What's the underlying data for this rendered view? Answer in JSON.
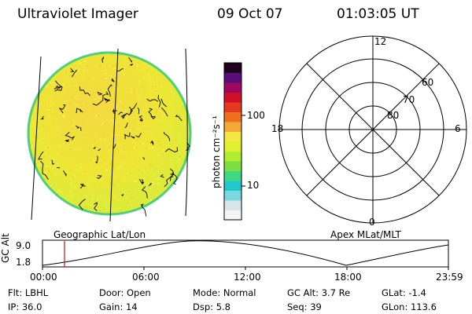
{
  "header": {
    "instrument": "Ultraviolet Imager",
    "date": "09 Oct 07",
    "time": "01:03:05 UT"
  },
  "image_panel": {
    "label": "Geographic Lat/Lon",
    "fill_color": "#e8ec2a",
    "rim_color": "#4ecf7a"
  },
  "colorbar": {
    "unit_label": "photon cm⁻²s⁻¹",
    "tick_labels": [
      "100",
      "10"
    ],
    "scale": "log",
    "colors": [
      "#f4f4f4",
      "#d8e6ea",
      "#7ad8e0",
      "#20c8d0",
      "#40d880",
      "#7ee040",
      "#b0ec30",
      "#e0f030",
      "#f4e640",
      "#f4a838",
      "#f07020",
      "#e83820",
      "#d01028",
      "#a00860",
      "#5a0c7a",
      "#200020"
    ]
  },
  "polar_plot": {
    "label": "Apex MLat/MLT",
    "mlt_labels": {
      "top": "12",
      "bottom": "0",
      "left": "18",
      "right": "6"
    },
    "mlat_labels": [
      "80",
      "70",
      "60"
    ]
  },
  "altitude_plot": {
    "ylabel": "GC Alt",
    "y_ticks": [
      "9.0",
      "1.8"
    ],
    "x_ticks": [
      "00:00",
      "06:00",
      "12:00",
      "18:00",
      "23:59"
    ],
    "marker_color": "#d01010"
  },
  "info": {
    "flt_label": "Flt:",
    "flt_value": "LBHL",
    "ip_label": "IP:",
    "ip_value": "36.0",
    "door_label": "Door:",
    "door_value": "Open",
    "gain_label": "Gain:",
    "gain_value": "14",
    "mode_label": "Mode:",
    "mode_value": "Normal",
    "dsp_label": "Dsp:",
    "dsp_value": "5.8",
    "gcalt_label": "GC Alt:",
    "gcalt_value": "3.7 Re",
    "seq_label": "Seq:",
    "seq_value": "39",
    "glat_label": "GLat:",
    "glat_value": "-1.4",
    "glon_label": "GLon:",
    "glon_value": "113.6"
  }
}
